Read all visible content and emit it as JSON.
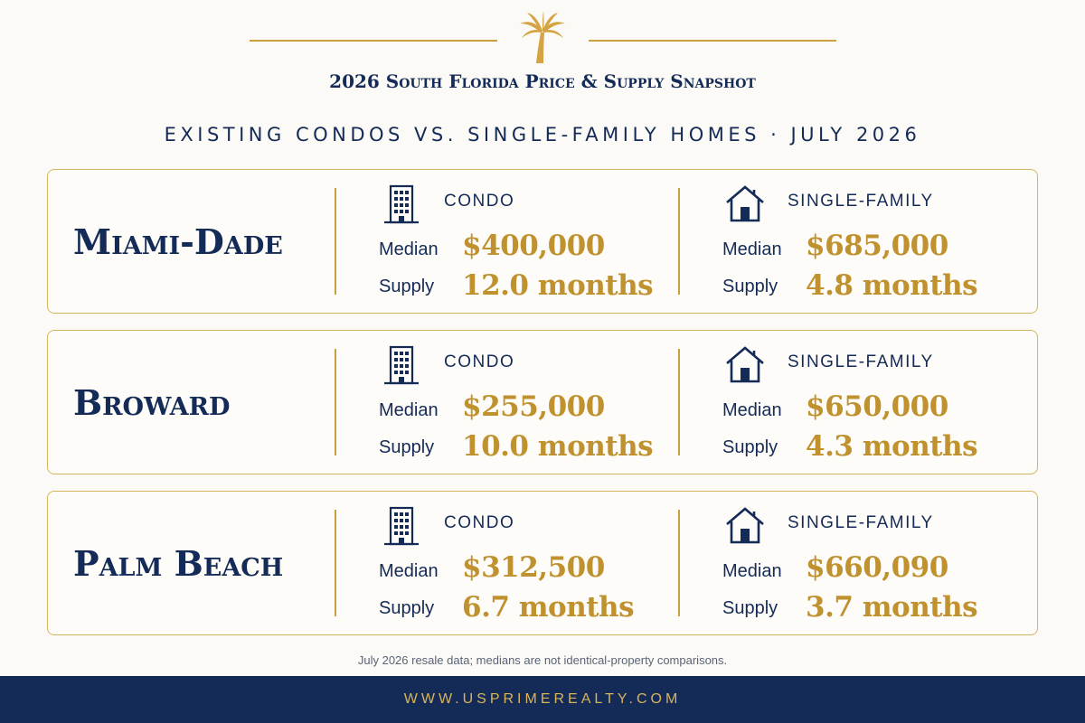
{
  "header": {
    "title": "2026 South Florida Price & Supply Snapshot",
    "subtitle": "EXISTING CONDOS VS. SINGLE-FAMILY HOMES  ·  JULY 2026",
    "ornament_icon": "palm-tree-icon"
  },
  "labels": {
    "median": "Median",
    "supply": "Supply"
  },
  "types": {
    "condo": {
      "label": "CONDO",
      "icon": "condo-building-icon"
    },
    "single_family": {
      "label": "SINGLE-FAMILY",
      "icon": "house-icon"
    }
  },
  "regions": [
    {
      "name": "Miami-Dade",
      "condo": {
        "median": "$400,000",
        "supply": "12.0 months"
      },
      "single_family": {
        "median": "$685,000",
        "supply": "4.8 months"
      }
    },
    {
      "name": "Broward",
      "condo": {
        "median": "$255,000",
        "supply": "10.0 months"
      },
      "single_family": {
        "median": "$650,000",
        "supply": "4.3 months"
      }
    },
    {
      "name": "Palm Beach",
      "condo": {
        "median": "$312,500",
        "supply": "6.7 months"
      },
      "single_family": {
        "median": "$660,090",
        "supply": "3.7 months"
      }
    }
  ],
  "footnote": "July 2026 resale data; medians are not identical-property comparisons.",
  "footer": {
    "url": "WWW.USPRIMEREALTY.COM"
  },
  "colors": {
    "navy": "#142a57",
    "gold": "#c0912f",
    "background": "#fbfaf6"
  }
}
